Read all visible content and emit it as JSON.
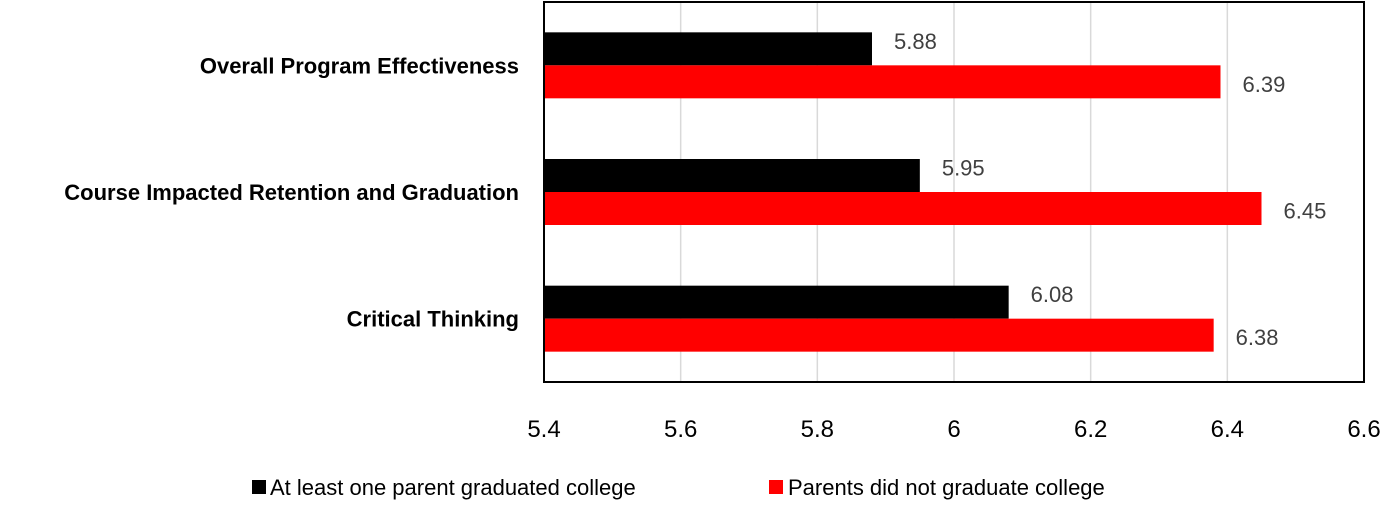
{
  "chart_data": {
    "type": "bar",
    "orientation": "horizontal",
    "title": "",
    "xlabel": "",
    "ylabel": "",
    "categories": [
      "Overall Program Effectiveness",
      "Course Impacted Retention and Graduation",
      "Critical Thinking"
    ],
    "series": [
      {
        "name": "At least one parent graduated college",
        "color": "#000000",
        "values": [
          5.88,
          5.95,
          6.08
        ]
      },
      {
        "name": "Parents did not graduate college",
        "color": "#ff0000",
        "values": [
          6.39,
          6.45,
          6.38
        ]
      }
    ],
    "data_labels": [
      [
        "5.88",
        "5.95",
        "6.08"
      ],
      [
        "6.39",
        "6.45",
        "6.38"
      ]
    ],
    "xlim": [
      5.4,
      6.6
    ],
    "xticks": [
      5.4,
      5.6,
      5.8,
      6.0,
      6.2,
      6.4,
      6.6
    ],
    "xtick_labels": [
      "5.4",
      "5.6",
      "5.8",
      "6",
      "6.2",
      "6.4",
      "6.6"
    ],
    "grid": "vertical",
    "legend_position": "bottom"
  }
}
